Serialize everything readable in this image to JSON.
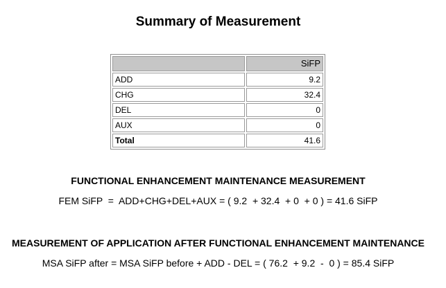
{
  "title": "Summary of Measurement",
  "table": {
    "header": [
      "",
      "SiFP"
    ],
    "rows": [
      {
        "label": "ADD",
        "value": "9.2"
      },
      {
        "label": "CHG",
        "value": "32.4"
      },
      {
        "label": "DEL",
        "value": "0"
      },
      {
        "label": "AUX",
        "value": "0"
      },
      {
        "label": "Total",
        "value": "41.6"
      }
    ]
  },
  "fem": {
    "heading": "FUNCTIONAL ENHANCEMENT MAINTENANCE MEASUREMENT",
    "formula": "FEM SiFP  =  ADD+CHG+DEL+AUX = ( 9.2  + 32.4  + 0  + 0 ) = 41.6 SiFP"
  },
  "msa": {
    "heading": "MEASUREMENT OF APPLICATION AFTER FUNCTIONAL ENHANCEMENT MAINTENANCE",
    "formula": "MSA SiFP after = MSA SiFP before + ADD - DEL = ( 76.2  + 9.2  -  0 ) = 85.4 SiFP"
  }
}
